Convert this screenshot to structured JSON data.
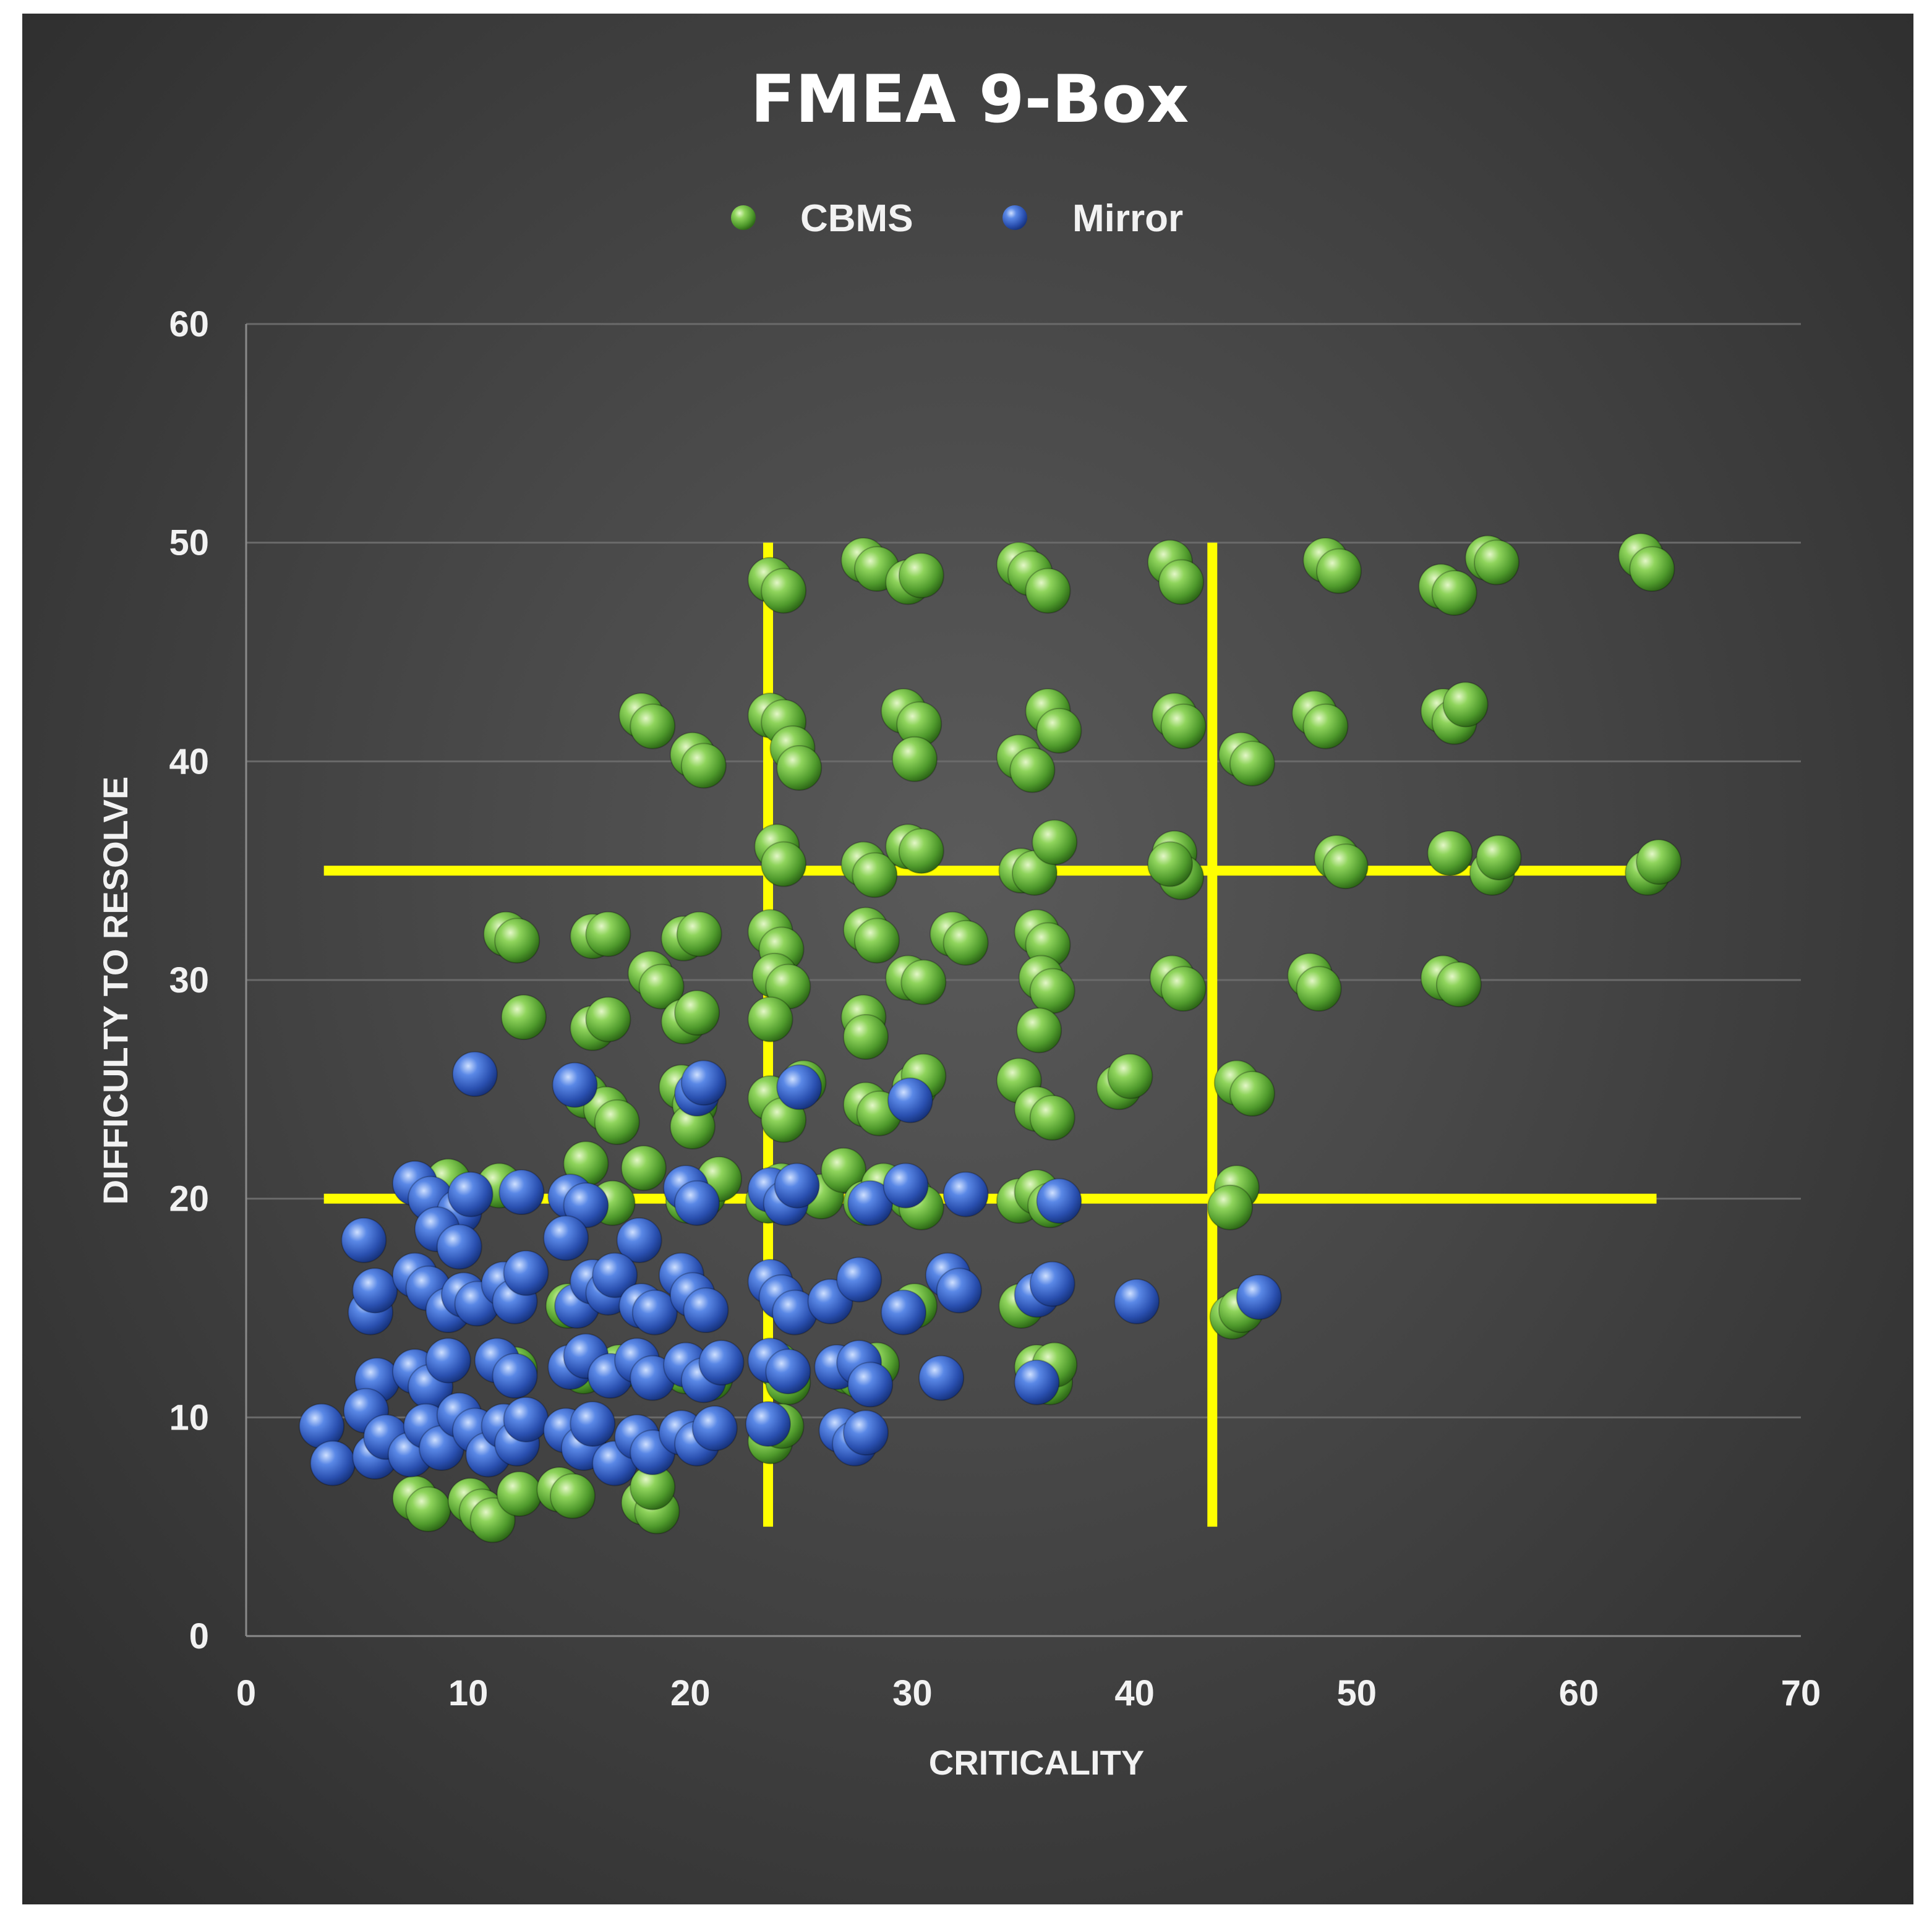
{
  "chart_data": {
    "type": "scatter",
    "title": "FMEA 9-Box",
    "xlabel": "CRITICALITY",
    "ylabel": "DIFFICULTY TO RESOLVE",
    "xlim": [
      0,
      70
    ],
    "ylim": [
      0,
      60
    ],
    "xticks": [
      "0",
      "10",
      "20",
      "30",
      "40",
      "50",
      "60",
      "70"
    ],
    "yticks": [
      "0",
      "10",
      "20",
      "30",
      "40",
      "50",
      "60"
    ],
    "grid": "horizontal",
    "legend": "top-center",
    "threshold_lines": {
      "color": "#ffff00",
      "vertical": [
        {
          "x": 23.5,
          "y_range": [
            5,
            50
          ]
        },
        {
          "x": 43.5,
          "y_range": [
            5,
            50
          ]
        }
      ],
      "horizontal": [
        {
          "y": 35,
          "x_range": [
            3.5,
            63.5
          ]
        },
        {
          "y": 20,
          "x_range": [
            3.5,
            63.5
          ]
        }
      ]
    },
    "series": [
      {
        "name": "CBMS",
        "color": "#6cc04a",
        "points": [
          [
            27.8,
            49.2
          ],
          [
            28.4,
            48.8
          ],
          [
            29.8,
            48.2
          ],
          [
            30.4,
            48.5
          ],
          [
            23.6,
            48.3
          ],
          [
            24.2,
            47.8
          ],
          [
            34.8,
            49.0
          ],
          [
            35.3,
            48.6
          ],
          [
            36.1,
            47.8
          ],
          [
            41.6,
            49.1
          ],
          [
            42.1,
            48.2
          ],
          [
            48.6,
            49.2
          ],
          [
            49.2,
            48.7
          ],
          [
            53.8,
            48.0
          ],
          [
            54.4,
            47.7
          ],
          [
            55.9,
            49.3
          ],
          [
            56.3,
            49.1
          ],
          [
            62.8,
            49.4
          ],
          [
            63.3,
            48.8
          ],
          [
            17.8,
            42.1
          ],
          [
            18.3,
            41.6
          ],
          [
            20.1,
            40.3
          ],
          [
            20.6,
            39.8
          ],
          [
            23.6,
            42.1
          ],
          [
            24.2,
            41.8
          ],
          [
            24.6,
            40.6
          ],
          [
            24.9,
            39.7
          ],
          [
            29.6,
            42.3
          ],
          [
            30.3,
            41.7
          ],
          [
            30.1,
            40.1
          ],
          [
            34.8,
            40.2
          ],
          [
            35.4,
            39.6
          ],
          [
            36.1,
            42.3
          ],
          [
            36.6,
            41.4
          ],
          [
            41.8,
            42.1
          ],
          [
            42.2,
            41.6
          ],
          [
            44.8,
            40.3
          ],
          [
            45.3,
            39.9
          ],
          [
            48.1,
            42.2
          ],
          [
            48.6,
            41.6
          ],
          [
            53.9,
            42.3
          ],
          [
            54.4,
            41.8
          ],
          [
            54.9,
            42.6
          ],
          [
            23.9,
            36.1
          ],
          [
            24.2,
            35.3
          ],
          [
            27.8,
            35.3
          ],
          [
            28.3,
            34.8
          ],
          [
            29.8,
            36.1
          ],
          [
            30.4,
            35.9
          ],
          [
            34.9,
            35.0
          ],
          [
            35.5,
            34.9
          ],
          [
            36.4,
            36.3
          ],
          [
            41.8,
            35.8
          ],
          [
            42.1,
            34.7
          ],
          [
            41.6,
            35.3
          ],
          [
            49.1,
            35.6
          ],
          [
            49.5,
            35.2
          ],
          [
            54.2,
            35.8
          ],
          [
            56.1,
            34.9
          ],
          [
            56.4,
            35.6
          ],
          [
            63.1,
            34.9
          ],
          [
            63.6,
            35.4
          ],
          [
            11.7,
            32.1
          ],
          [
            12.2,
            31.8
          ],
          [
            15.6,
            32.0
          ],
          [
            16.3,
            32.1
          ],
          [
            18.2,
            30.3
          ],
          [
            18.7,
            29.7
          ],
          [
            19.7,
            31.9
          ],
          [
            20.4,
            32.1
          ],
          [
            23.6,
            32.2
          ],
          [
            24.1,
            31.4
          ],
          [
            23.8,
            30.2
          ],
          [
            24.4,
            29.7
          ],
          [
            27.9,
            32.3
          ],
          [
            28.4,
            31.8
          ],
          [
            29.8,
            30.1
          ],
          [
            30.5,
            29.9
          ],
          [
            31.8,
            32.1
          ],
          [
            32.4,
            31.7
          ],
          [
            35.6,
            32.2
          ],
          [
            36.1,
            31.6
          ],
          [
            35.8,
            30.1
          ],
          [
            36.3,
            29.5
          ],
          [
            41.7,
            30.1
          ],
          [
            42.2,
            29.6
          ],
          [
            47.9,
            30.2
          ],
          [
            48.3,
            29.6
          ],
          [
            53.9,
            30.1
          ],
          [
            54.6,
            29.8
          ],
          [
            12.5,
            28.3
          ],
          [
            15.6,
            27.8
          ],
          [
            16.3,
            28.2
          ],
          [
            19.7,
            28.1
          ],
          [
            20.3,
            28.5
          ],
          [
            23.6,
            28.2
          ],
          [
            27.8,
            28.3
          ],
          [
            27.9,
            27.4
          ],
          [
            35.7,
            27.7
          ],
          [
            15.3,
            24.7
          ],
          [
            16.2,
            24.1
          ],
          [
            16.7,
            23.5
          ],
          [
            19.6,
            25.1
          ],
          [
            20.2,
            24.3
          ],
          [
            20.1,
            23.3
          ],
          [
            23.6,
            24.6
          ],
          [
            24.2,
            23.6
          ],
          [
            25.1,
            25.3
          ],
          [
            27.9,
            24.3
          ],
          [
            28.5,
            23.9
          ],
          [
            30.1,
            25.1
          ],
          [
            30.5,
            25.6
          ],
          [
            34.8,
            25.4
          ],
          [
            35.6,
            24.1
          ],
          [
            36.3,
            23.7
          ],
          [
            39.3,
            25.1
          ],
          [
            39.8,
            25.6
          ],
          [
            44.6,
            25.3
          ],
          [
            45.3,
            24.8
          ],
          [
            9.1,
            20.8
          ],
          [
            11.4,
            20.6
          ],
          [
            15.3,
            21.6
          ],
          [
            16.5,
            19.8
          ],
          [
            17.9,
            21.4
          ],
          [
            19.9,
            19.9
          ],
          [
            20.6,
            20.2
          ],
          [
            21.3,
            20.9
          ],
          [
            23.5,
            19.9
          ],
          [
            24.1,
            20.6
          ],
          [
            25.9,
            20.1
          ],
          [
            26.9,
            21.3
          ],
          [
            27.9,
            19.8
          ],
          [
            28.7,
            20.6
          ],
          [
            29.9,
            20.1
          ],
          [
            30.4,
            19.6
          ],
          [
            34.8,
            19.9
          ],
          [
            35.6,
            20.3
          ],
          [
            36.2,
            19.7
          ],
          [
            44.6,
            20.5
          ],
          [
            44.3,
            19.6
          ],
          [
            14.5,
            15.1
          ],
          [
            30.1,
            15.1
          ],
          [
            34.9,
            15.1
          ],
          [
            44.4,
            14.6
          ],
          [
            44.8,
            14.9
          ],
          [
            12.1,
            12.2
          ],
          [
            15.2,
            12.1
          ],
          [
            16.8,
            12.3
          ],
          [
            19.8,
            12.1
          ],
          [
            20.9,
            11.8
          ],
          [
            23.9,
            12.4
          ],
          [
            24.4,
            11.6
          ],
          [
            27.1,
            12.1
          ],
          [
            27.6,
            11.9
          ],
          [
            28.4,
            12.4
          ],
          [
            35.6,
            12.3
          ],
          [
            36.2,
            11.6
          ],
          [
            36.4,
            12.4
          ],
          [
            7.6,
            6.3
          ],
          [
            8.2,
            5.8
          ],
          [
            10.1,
            6.2
          ],
          [
            10.6,
            5.7
          ],
          [
            11.1,
            5.3
          ],
          [
            12.3,
            6.5
          ],
          [
            14.1,
            6.7
          ],
          [
            14.7,
            6.4
          ],
          [
            17.9,
            6.1
          ],
          [
            18.5,
            5.7
          ],
          [
            18.3,
            6.8
          ],
          [
            23.6,
            8.9
          ],
          [
            24.1,
            9.6
          ]
        ]
      },
      {
        "name": "Mirror",
        "color": "#3a66cc",
        "points": [
          [
            10.3,
            25.7
          ],
          [
            14.8,
            25.2
          ],
          [
            20.3,
            24.8
          ],
          [
            20.6,
            25.3
          ],
          [
            24.9,
            25.1
          ],
          [
            29.9,
            24.5
          ],
          [
            7.6,
            20.7
          ],
          [
            8.3,
            20.0
          ],
          [
            9.6,
            19.4
          ],
          [
            10.1,
            20.2
          ],
          [
            12.4,
            20.3
          ],
          [
            14.6,
            20.1
          ],
          [
            15.3,
            19.7
          ],
          [
            19.8,
            20.5
          ],
          [
            20.3,
            19.8
          ],
          [
            23.6,
            20.4
          ],
          [
            24.3,
            19.8
          ],
          [
            24.8,
            20.6
          ],
          [
            28.1,
            19.8
          ],
          [
            29.7,
            20.6
          ],
          [
            32.4,
            20.2
          ],
          [
            36.6,
            19.9
          ],
          [
            5.3,
            18.1
          ],
          [
            8.6,
            18.6
          ],
          [
            9.6,
            17.8
          ],
          [
            14.4,
            18.2
          ],
          [
            17.7,
            18.1
          ],
          [
            5.6,
            14.8
          ],
          [
            5.8,
            15.8
          ],
          [
            7.6,
            16.5
          ],
          [
            8.2,
            15.9
          ],
          [
            9.1,
            14.9
          ],
          [
            9.8,
            15.6
          ],
          [
            10.4,
            15.2
          ],
          [
            11.6,
            16.1
          ],
          [
            12.1,
            15.3
          ],
          [
            12.6,
            16.6
          ],
          [
            14.9,
            15.1
          ],
          [
            15.6,
            16.2
          ],
          [
            16.3,
            15.7
          ],
          [
            16.6,
            16.5
          ],
          [
            17.8,
            15.1
          ],
          [
            18.4,
            14.8
          ],
          [
            19.6,
            16.5
          ],
          [
            20.1,
            15.6
          ],
          [
            20.7,
            14.9
          ],
          [
            23.6,
            16.2
          ],
          [
            24.1,
            15.5
          ],
          [
            24.7,
            14.8
          ],
          [
            26.3,
            15.3
          ],
          [
            27.6,
            16.3
          ],
          [
            29.6,
            14.8
          ],
          [
            31.6,
            16.5
          ],
          [
            32.1,
            15.8
          ],
          [
            35.6,
            15.6
          ],
          [
            36.3,
            16.1
          ],
          [
            40.1,
            15.3
          ],
          [
            45.6,
            15.5
          ],
          [
            5.9,
            11.7
          ],
          [
            7.6,
            12.1
          ],
          [
            8.3,
            11.4
          ],
          [
            9.1,
            12.6
          ],
          [
            11.3,
            12.6
          ],
          [
            12.1,
            11.9
          ],
          [
            14.6,
            12.3
          ],
          [
            15.3,
            12.8
          ],
          [
            16.4,
            11.9
          ],
          [
            17.6,
            12.6
          ],
          [
            18.3,
            11.8
          ],
          [
            19.8,
            12.4
          ],
          [
            20.6,
            11.7
          ],
          [
            21.4,
            12.5
          ],
          [
            23.6,
            12.6
          ],
          [
            24.4,
            12.1
          ],
          [
            26.6,
            12.3
          ],
          [
            27.6,
            12.5
          ],
          [
            28.1,
            11.5
          ],
          [
            31.3,
            11.8
          ],
          [
            35.6,
            11.6
          ],
          [
            3.4,
            9.6
          ],
          [
            3.9,
            7.9
          ],
          [
            5.4,
            10.3
          ],
          [
            5.8,
            8.2
          ],
          [
            6.3,
            9.1
          ],
          [
            7.4,
            8.3
          ],
          [
            8.1,
            9.6
          ],
          [
            8.8,
            8.6
          ],
          [
            9.6,
            10.1
          ],
          [
            10.3,
            9.4
          ],
          [
            10.9,
            8.3
          ],
          [
            11.6,
            9.6
          ],
          [
            12.2,
            8.8
          ],
          [
            12.6,
            9.9
          ],
          [
            14.4,
            9.4
          ],
          [
            15.2,
            8.6
          ],
          [
            15.6,
            9.7
          ],
          [
            16.6,
            7.9
          ],
          [
            17.6,
            9.1
          ],
          [
            18.3,
            8.4
          ],
          [
            19.6,
            9.3
          ],
          [
            20.3,
            8.8
          ],
          [
            21.1,
            9.5
          ],
          [
            23.5,
            9.7
          ],
          [
            26.8,
            9.4
          ],
          [
            27.4,
            8.8
          ],
          [
            27.9,
            9.3
          ]
        ]
      }
    ]
  }
}
